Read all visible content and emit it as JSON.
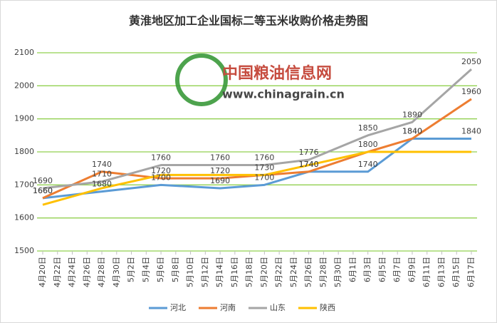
{
  "chart_data": {
    "type": "line",
    "title": "黄淮地区加工企业国标二等玉米收购价格走势图",
    "watermark": {
      "name": "中国粮油信息网",
      "url": "www.chinagrain.cn"
    },
    "categories": [
      "4月20日",
      "4月22日",
      "4月24日",
      "4月26日",
      "4月28日",
      "4月30日",
      "5月2日",
      "5月4日",
      "5月6日",
      "5月8日",
      "5月10日",
      "5月12日",
      "5月14日",
      "5月16日",
      "5月18日",
      "5月20日",
      "5月22日",
      "5月24日",
      "5月26日",
      "5月28日",
      "5月30日",
      "6月1日",
      "6月3日",
      "6月5日",
      "6月7日",
      "6月9日",
      "6月11日",
      "6月13日",
      "6月15日",
      "6月17日"
    ],
    "connect_gaps": true,
    "series": [
      {
        "name": "河北",
        "color": "#5b9bd5",
        "data_labels": true,
        "values": [
          1660,
          null,
          null,
          null,
          1680,
          null,
          null,
          null,
          1700,
          null,
          null,
          null,
          1690,
          null,
          null,
          1700,
          null,
          null,
          1740,
          null,
          null,
          null,
          1740,
          null,
          null,
          1840,
          null,
          null,
          null,
          1840
        ]
      },
      {
        "name": "河南",
        "color": "#ed7d31",
        "data_labels": true,
        "values": [
          1660,
          null,
          null,
          null,
          1740,
          null,
          null,
          null,
          1720,
          null,
          null,
          null,
          1720,
          null,
          null,
          1730,
          null,
          null,
          1740,
          null,
          null,
          null,
          1800,
          null,
          null,
          1840,
          null,
          null,
          null,
          1960
        ]
      },
      {
        "name": "山东",
        "color": "#a5a5a5",
        "data_labels": true,
        "values": [
          1690,
          null,
          null,
          null,
          1710,
          null,
          null,
          null,
          1760,
          null,
          null,
          null,
          1760,
          null,
          null,
          1760,
          null,
          null,
          1776,
          null,
          null,
          null,
          1850,
          null,
          null,
          1890,
          null,
          null,
          null,
          2050
        ]
      },
      {
        "name": "陕西",
        "color": "#ffc000",
        "data_labels": false,
        "values": [
          1640,
          null,
          null,
          null,
          1690,
          null,
          null,
          null,
          1730,
          null,
          null,
          null,
          1730,
          null,
          null,
          1730,
          null,
          null,
          1760,
          null,
          null,
          null,
          1800,
          null,
          null,
          1800,
          null,
          null,
          null,
          1800
        ]
      }
    ],
    "ylim": [
      1500,
      2100
    ],
    "yticks": [
      1500,
      1600,
      1700,
      1800,
      1900,
      2000,
      2100
    ],
    "grid": true,
    "grid_color": "#92d050",
    "legend": "bottom"
  }
}
